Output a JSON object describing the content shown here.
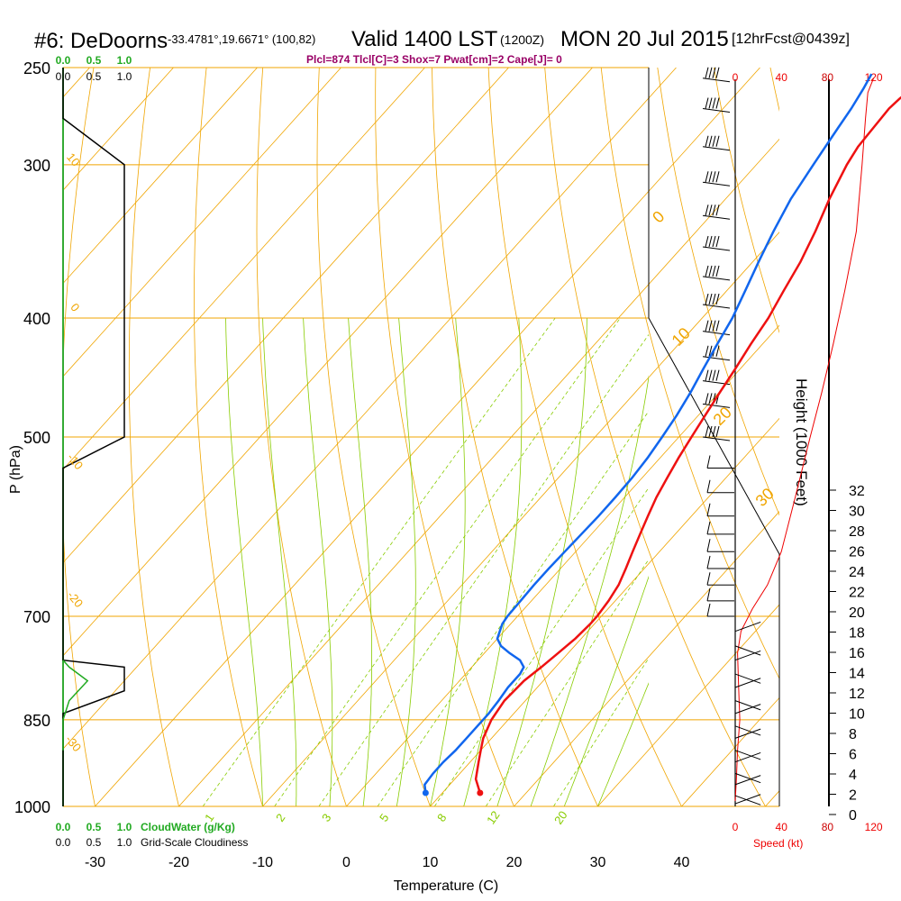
{
  "header": {
    "title": "#6: DeDoorns",
    "coords": "-33.4781°,19.6671° (100,82)",
    "valid": "Valid 1400 LST",
    "zulu": "(1200Z)",
    "date": "MON 20 Jul 2015",
    "forecast": "[12hrFcst@0439z]",
    "params": "Plcl=874 Tlcl[C]=3 Shox=7 Pwat[cm]=2 Cape[J]= 0"
  },
  "colors": {
    "isotherm": "#f0a500",
    "dry_adiabat": "#f0a500",
    "moist_adiabat": "#88cc00",
    "mixing_ratio": "#88cc00",
    "temperature": "#ee1111",
    "dewpoint": "#1166ee",
    "cloud_water": "#22aa22",
    "speed": "#ee0000",
    "params": "#990066"
  },
  "chart_data": {
    "type": "line",
    "title": "#6: DeDoorns",
    "xlabel": "Temperature (C)",
    "ylabel": "P (hPa)",
    "right_label": "Height (1000 Feet)",
    "x_ticks": [
      "-30",
      "-20",
      "-10",
      "0",
      "10",
      "20",
      "30",
      "40"
    ],
    "y_ticks": [
      "250",
      "300",
      "400",
      "500",
      "700",
      "850",
      "1000"
    ],
    "height_ticks": [
      "0",
      "2",
      "4",
      "6",
      "8",
      "10",
      "12",
      "14",
      "16",
      "18",
      "20",
      "22",
      "24",
      "26",
      "28",
      "30",
      "32"
    ],
    "speed_ticks": [
      "0",
      "40",
      "80",
      "120"
    ],
    "speed_label": "Speed (kt)",
    "cloud_ticks": [
      "0.0",
      "0.5",
      "1.0"
    ],
    "cloudwater_label": "CloudWater (g/Kg)",
    "cloudiness_label": "Grid-Scale Cloudiness",
    "isotherm_labels": [
      "0",
      "10",
      "20",
      "30"
    ],
    "dry_adiabat_labels": [
      "10",
      "0",
      "-10",
      "-20",
      "-30"
    ],
    "mixing_ratio_labels": [
      "1",
      "2",
      "3",
      "5",
      "8",
      "12",
      "20"
    ],
    "series": [
      {
        "name": "Temperature",
        "points": [
          [
            14.5,
            975
          ],
          [
            12.5,
            950
          ],
          [
            11,
            920
          ],
          [
            10,
            900
          ],
          [
            9,
            880
          ],
          [
            8,
            850
          ],
          [
            7.5,
            820
          ],
          [
            7.7,
            790
          ],
          [
            8.3,
            770
          ],
          [
            8.8,
            750
          ],
          [
            9.3,
            730
          ],
          [
            9.5,
            710
          ],
          [
            9.5,
            700
          ],
          [
            9.2,
            680
          ],
          [
            8.7,
            660
          ],
          [
            7.8,
            640
          ],
          [
            6.8,
            620
          ],
          [
            5.8,
            600
          ],
          [
            4.8,
            580
          ],
          [
            3.8,
            560
          ],
          [
            3,
            540
          ],
          [
            2.2,
            520
          ],
          [
            1.5,
            500
          ],
          [
            0.8,
            480
          ],
          [
            0.1,
            460
          ],
          [
            -0.6,
            440
          ],
          [
            -1.4,
            420
          ],
          [
            -2.1,
            400
          ],
          [
            -3.2,
            380
          ],
          [
            -4.3,
            360
          ],
          [
            -5.8,
            340
          ],
          [
            -7.6,
            320
          ],
          [
            -9.2,
            300
          ],
          [
            -9.8,
            290
          ],
          [
            -10,
            280
          ],
          [
            -10.2,
            270
          ],
          [
            -10,
            265
          ],
          [
            -9.6,
            260
          ],
          [
            -9.2,
            256
          ],
          [
            -9,
            253
          ]
        ]
      },
      {
        "name": "Dewpoint",
        "points": [
          [
            8,
            975
          ],
          [
            7,
            960
          ],
          [
            6.8,
            940
          ],
          [
            6.8,
            920
          ],
          [
            7,
            900
          ],
          [
            7,
            880
          ],
          [
            7,
            860
          ],
          [
            7,
            840
          ],
          [
            6.8,
            820
          ],
          [
            6.5,
            800
          ],
          [
            6.5,
            780
          ],
          [
            6.2,
            770
          ],
          [
            5,
            760
          ],
          [
            3,
            750
          ],
          [
            1.2,
            740
          ],
          [
            0,
            730
          ],
          [
            -0.5,
            720
          ],
          [
            -1,
            710
          ],
          [
            -1.2,
            700
          ],
          [
            -1.3,
            680
          ],
          [
            -1.4,
            660
          ],
          [
            -1.4,
            640
          ],
          [
            -1.3,
            620
          ],
          [
            -1.2,
            600
          ],
          [
            -1.1,
            580
          ],
          [
            -1.1,
            560
          ],
          [
            -1.2,
            540
          ],
          [
            -1.5,
            520
          ],
          [
            -2,
            500
          ],
          [
            -2.6,
            480
          ],
          [
            -3.4,
            460
          ],
          [
            -4.4,
            440
          ],
          [
            -5.4,
            420
          ],
          [
            -6.4,
            400
          ],
          [
            -7.8,
            380
          ],
          [
            -9.3,
            360
          ],
          [
            -10.8,
            340
          ],
          [
            -12.2,
            320
          ],
          [
            -13.2,
            300
          ],
          [
            -13.7,
            290
          ],
          [
            -14.2,
            280
          ],
          [
            -14.7,
            270
          ],
          [
            -15.4,
            260
          ],
          [
            -16,
            253
          ]
        ]
      }
    ],
    "cloud_water_profile": [
      [
        0,
        900
      ],
      [
        0,
        850
      ],
      [
        0.05,
        820
      ],
      [
        0.2,
        790
      ],
      [
        0.05,
        770
      ],
      [
        0,
        760
      ]
    ],
    "cloudiness_profile": [
      [
        0,
        250
      ],
      [
        0,
        275
      ],
      [
        1,
        300
      ],
      [
        1,
        500
      ],
      [
        0,
        530
      ],
      [
        0,
        760
      ],
      [
        1,
        770
      ],
      [
        1,
        805
      ],
      [
        0,
        840
      ],
      [
        0,
        1000
      ]
    ],
    "speed_profile": [
      [
        120,
        255
      ],
      [
        115,
        262
      ],
      [
        113,
        275
      ],
      [
        110,
        300
      ],
      [
        105,
        340
      ],
      [
        95,
        380
      ],
      [
        85,
        420
      ],
      [
        75,
        460
      ],
      [
        65,
        500
      ],
      [
        52,
        560
      ],
      [
        40,
        620
      ],
      [
        28,
        660
      ],
      [
        15,
        690
      ],
      [
        5,
        720
      ],
      [
        2,
        750
      ],
      [
        3,
        800
      ],
      [
        4,
        850
      ],
      [
        2,
        900
      ],
      [
        1,
        950
      ],
      [
        0,
        990
      ]
    ],
    "barb_pressures": [
      255,
      270,
      290,
      310,
      330,
      350,
      370,
      390,
      410,
      430,
      450,
      470,
      500,
      530,
      555,
      580,
      600,
      620,
      640,
      660,
      680,
      700,
      720,
      740,
      760,
      780,
      800,
      820,
      840,
      860,
      880,
      900,
      920,
      940,
      960,
      980,
      995
    ]
  }
}
